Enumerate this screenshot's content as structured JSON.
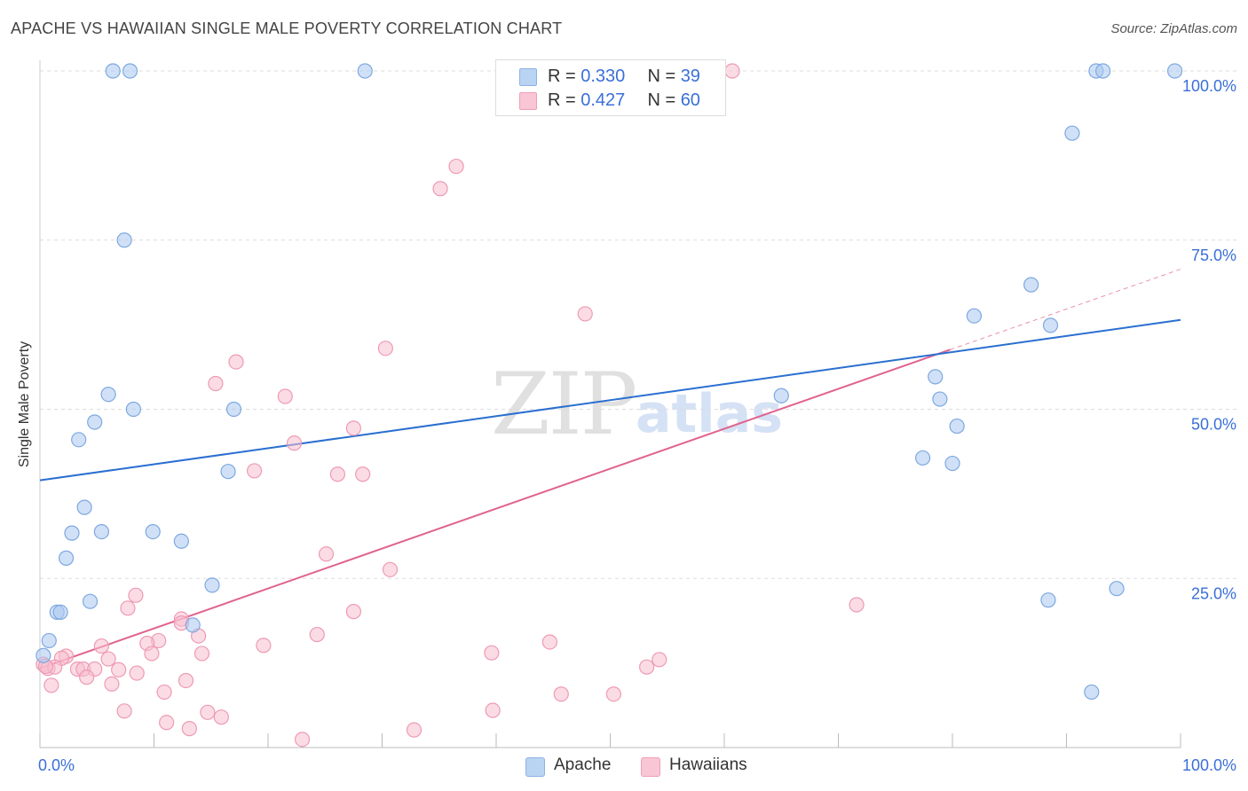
{
  "header": {
    "title": "APACHE VS HAWAIIAN SINGLE MALE POVERTY CORRELATION CHART",
    "source": "Source: ZipAtlas.com"
  },
  "watermark": {
    "zip": "ZIP",
    "atlas": "atlas"
  },
  "stats": {
    "apache": {
      "r_label": "R = ",
      "r_value": "0.330",
      "n_label": "N = ",
      "n_value": "39"
    },
    "hawaiians": {
      "r_label": "R = ",
      "r_value": "0.427",
      "n_label": "N = ",
      "n_value": "60"
    }
  },
  "legend": {
    "apache": "Apache",
    "hawaiians": "Hawaiians"
  },
  "colors": {
    "apache_fill": "#a9c8f0",
    "apache_stroke": "#7ea8e0",
    "apache_line": "#2a6fd0",
    "hawaiians_fill": "#f8bfd0",
    "hawaiians_stroke": "#ee9ab4",
    "hawaiians_line": "#e0638e",
    "tick_label": "#3a6fd8",
    "grid": "#dddddd"
  },
  "chart_data": {
    "type": "scatter",
    "title": "APACHE VS HAWAIIAN SINGLE MALE POVERTY CORRELATION CHART",
    "xlabel": "",
    "ylabel": "Single Male Poverty",
    "xlim": [
      0,
      100
    ],
    "ylim": [
      0,
      100
    ],
    "x_tick_labels": [
      "0.0%",
      "100.0%"
    ],
    "y_ticks": [
      25,
      50,
      75,
      100
    ],
    "y_tick_labels": [
      "25.0%",
      "50.0%",
      "75.0%",
      "100.0%"
    ],
    "grid": true,
    "legend_position": "bottom-center",
    "series": [
      {
        "name": "Apache",
        "r": 0.33,
        "n": 39,
        "trend": {
          "x0": 0,
          "y0": 39.5,
          "x1": 100,
          "y1": 63.2
        },
        "points": [
          [
            6.4,
            100
          ],
          [
            7.9,
            100
          ],
          [
            28.5,
            100
          ],
          [
            92.6,
            100
          ],
          [
            93.2,
            100
          ],
          [
            99.5,
            100
          ],
          [
            90.5,
            90.8
          ],
          [
            7.4,
            75.0
          ],
          [
            86.9,
            68.4
          ],
          [
            81.9,
            63.8
          ],
          [
            88.6,
            62.4
          ],
          [
            6.0,
            52.2
          ],
          [
            8.2,
            50.0
          ],
          [
            17.0,
            50.0
          ],
          [
            65.0,
            52.0
          ],
          [
            78.5,
            54.8
          ],
          [
            78.9,
            51.5
          ],
          [
            80.4,
            47.5
          ],
          [
            4.8,
            48.1
          ],
          [
            3.4,
            45.5
          ],
          [
            16.5,
            40.8
          ],
          [
            77.4,
            42.8
          ],
          [
            80.0,
            42.0
          ],
          [
            3.9,
            35.5
          ],
          [
            2.8,
            31.7
          ],
          [
            5.4,
            31.9
          ],
          [
            9.9,
            31.9
          ],
          [
            12.4,
            30.5
          ],
          [
            2.3,
            28.0
          ],
          [
            15.1,
            24.0
          ],
          [
            94.4,
            23.5
          ],
          [
            4.4,
            21.6
          ],
          [
            1.5,
            20.0
          ],
          [
            1.8,
            20.0
          ],
          [
            88.4,
            21.8
          ],
          [
            13.4,
            18.1
          ],
          [
            0.8,
            15.8
          ],
          [
            0.3,
            13.6
          ],
          [
            92.2,
            8.2
          ]
        ]
      },
      {
        "name": "Hawaiians",
        "r": 0.427,
        "n": 60,
        "trend": {
          "x0": 0,
          "y0": 11.7,
          "x1": 79.8,
          "y1": 58.8
        },
        "trend_dashed": {
          "x0": 79.8,
          "y0": 58.8,
          "x1": 100,
          "y1": 70.7
        },
        "points": [
          [
            60.7,
            100
          ],
          [
            36.5,
            85.9
          ],
          [
            35.1,
            82.6
          ],
          [
            47.8,
            64.1
          ],
          [
            30.3,
            59.0
          ],
          [
            17.2,
            57.0
          ],
          [
            15.4,
            53.8
          ],
          [
            21.5,
            51.9
          ],
          [
            27.5,
            47.2
          ],
          [
            22.3,
            45.0
          ],
          [
            18.8,
            40.9
          ],
          [
            26.1,
            40.4
          ],
          [
            28.3,
            40.4
          ],
          [
            25.1,
            28.6
          ],
          [
            30.7,
            26.3
          ],
          [
            8.4,
            22.5
          ],
          [
            7.7,
            20.6
          ],
          [
            27.5,
            20.1
          ],
          [
            71.6,
            21.1
          ],
          [
            12.4,
            19.0
          ],
          [
            12.4,
            18.4
          ],
          [
            13.9,
            16.5
          ],
          [
            24.3,
            16.7
          ],
          [
            10.4,
            15.8
          ],
          [
            9.4,
            15.4
          ],
          [
            19.6,
            15.1
          ],
          [
            44.7,
            15.6
          ],
          [
            5.4,
            15.0
          ],
          [
            9.8,
            13.9
          ],
          [
            14.2,
            13.9
          ],
          [
            39.6,
            14.0
          ],
          [
            54.3,
            13.0
          ],
          [
            2.3,
            13.5
          ],
          [
            1.9,
            13.2
          ],
          [
            6.0,
            13.1
          ],
          [
            0.3,
            12.3
          ],
          [
            0.7,
            11.7
          ],
          [
            1.3,
            11.9
          ],
          [
            3.3,
            11.6
          ],
          [
            3.8,
            11.6
          ],
          [
            4.8,
            11.6
          ],
          [
            6.9,
            11.5
          ],
          [
            53.2,
            11.9
          ],
          [
            8.5,
            11.0
          ],
          [
            4.1,
            10.4
          ],
          [
            12.8,
            9.9
          ],
          [
            6.3,
            9.4
          ],
          [
            1.0,
            9.2
          ],
          [
            10.9,
            8.2
          ],
          [
            45.7,
            7.9
          ],
          [
            50.3,
            7.9
          ],
          [
            7.4,
            5.4
          ],
          [
            14.7,
            5.2
          ],
          [
            15.9,
            4.5
          ],
          [
            39.7,
            5.5
          ],
          [
            11.1,
            3.7
          ],
          [
            13.1,
            2.8
          ],
          [
            32.8,
            2.6
          ],
          [
            23.0,
            1.2
          ],
          [
            0.5,
            12.0
          ]
        ]
      }
    ]
  }
}
